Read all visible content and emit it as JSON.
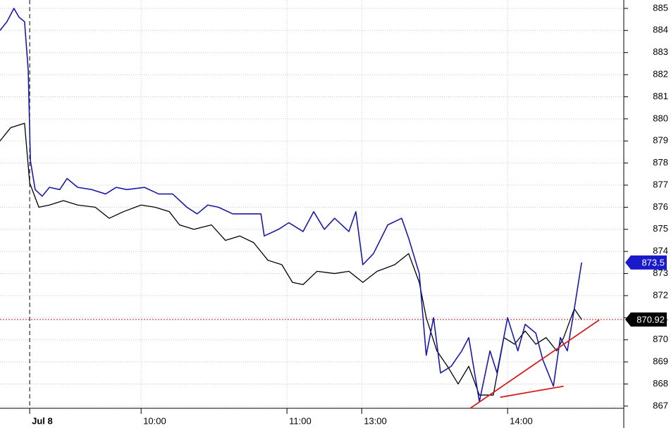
{
  "chart_data": {
    "type": "line",
    "xlim": [
      0,
      170.2
    ],
    "ylim": [
      866.9,
      885.38
    ],
    "xticks": [
      {
        "value": 8.1,
        "label": "Jul 8"
      },
      {
        "value": 38.5,
        "label": "10:00"
      },
      {
        "value": 78.3,
        "label": "11:00"
      },
      {
        "value": 98.7,
        "label": "13:00"
      },
      {
        "value": 138.5,
        "label": "14:00"
      }
    ],
    "yticks": [
      867,
      868,
      869,
      870,
      871,
      872,
      873,
      874,
      875,
      876,
      877,
      878,
      879,
      880,
      881,
      882,
      883,
      884,
      885
    ],
    "grid": true,
    "series": [
      {
        "color": "#000000",
        "x": [
          0,
          2.9,
          6.7,
          8.1,
          10.6,
          13.5,
          17.3,
          21.2,
          26,
          29.8,
          33.7,
          38.5,
          42.3,
          46.2,
          49,
          52.9,
          57.7,
          61.5,
          65.4,
          69.2,
          73.1,
          76.9,
          79.8,
          82.7,
          86.5,
          91.3,
          95.2,
          99,
          102.9,
          107.7,
          111.5,
          114.4,
          116.3,
          119.2,
          122.1,
          125,
          127.9,
          130.8,
          134.6,
          137.5,
          140.4,
          143.3,
          146.2,
          149,
          151.9,
          153.8,
          156.7,
          158.7
        ],
        "values": [
          879.0,
          879.6,
          879.8,
          877.1,
          876.0,
          876.1,
          876.3,
          876.1,
          876.0,
          875.5,
          875.8,
          876.1,
          876.0,
          875.8,
          875.2,
          875.0,
          875.2,
          874.5,
          874.7,
          874.4,
          873.6,
          873.4,
          872.6,
          872.5,
          873.1,
          873.0,
          873.1,
          872.6,
          873.1,
          873.4,
          873.9,
          872.6,
          871.0,
          869.5,
          868.8,
          868.0,
          868.8,
          867.5,
          867.5,
          870.1,
          869.8,
          870.4,
          869.8,
          870.1,
          869.5,
          870.1,
          871.4,
          870.92
        ]
      },
      {
        "color": "#1a1aa6",
        "x": [
          0,
          1.9,
          3.8,
          5.2,
          6.7,
          7.7,
          8.3,
          9.6,
          11.5,
          13.5,
          16.3,
          18.3,
          21.2,
          25,
          28.8,
          31.7,
          34.6,
          39.4,
          43.3,
          47.1,
          51,
          53.8,
          56.7,
          59.6,
          63.5,
          67.3,
          71.2,
          72.1,
          76,
          78.8,
          82.7,
          85.6,
          88.5,
          91.3,
          95.2,
          97.1,
          99,
          101.9,
          105.8,
          109.6,
          111.5,
          114.4,
          116.3,
          118.3,
          120.2,
          123.1,
          126,
          127.9,
          130.8,
          133.7,
          135.6,
          138.5,
          141.3,
          143.3,
          146.2,
          148.1,
          151,
          152.9,
          154.8,
          156.7,
          158.7
        ],
        "values": [
          884.0,
          884.4,
          885.0,
          884.6,
          884.4,
          882.2,
          878.1,
          876.8,
          876.5,
          876.9,
          876.8,
          877.3,
          876.9,
          876.8,
          876.6,
          876.9,
          876.8,
          876.9,
          876.6,
          876.6,
          876.0,
          875.7,
          876.1,
          876.0,
          875.7,
          875.7,
          875.7,
          874.7,
          875.0,
          875.3,
          874.9,
          875.8,
          875.0,
          875.5,
          874.9,
          875.8,
          873.4,
          873.9,
          875.2,
          875.5,
          874.6,
          873.0,
          869.3,
          871.0,
          868.5,
          868.8,
          869.5,
          870.1,
          867.2,
          869.5,
          868.5,
          871.0,
          869.5,
          870.7,
          870.3,
          869.1,
          867.9,
          870.1,
          869.5,
          871.4,
          873.5
        ]
      }
    ],
    "trendlines": [
      {
        "color": "#d42020",
        "x": [
          128.3,
          163.5
        ],
        "values": [
          866.9,
          870.9
        ]
      },
      {
        "color": "#d42020",
        "x": [
          136.5,
          153.8
        ],
        "values": [
          867.4,
          867.9
        ]
      }
    ],
    "price_markers": [
      {
        "value": 873.5,
        "color": "#1a1acc"
      },
      {
        "value": 870.92,
        "color": "#000000",
        "line_color": "#cc2020"
      }
    ]
  }
}
